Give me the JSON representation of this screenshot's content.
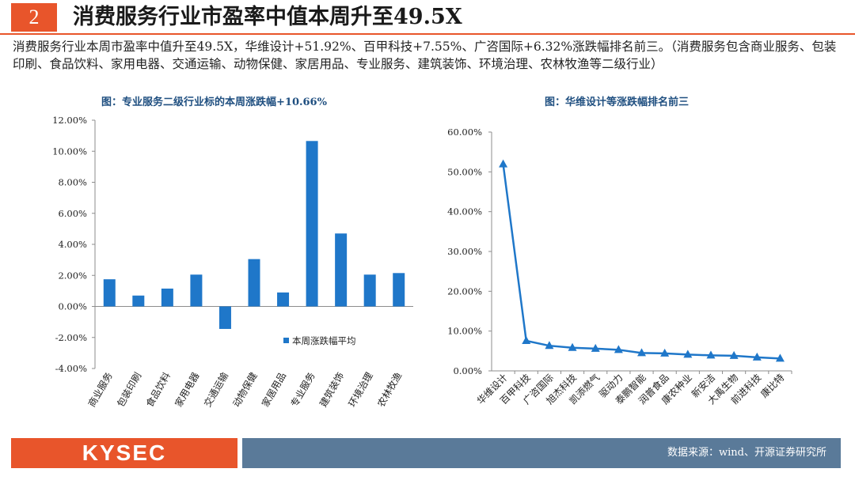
{
  "header": {
    "number": "2",
    "title": "消费服务行业市盈率中值本周升至49.5X"
  },
  "description": "消费服务行业本周市盈率中值升至49.5X，华维设计+51.92%、百甲科技+7.55%、广咨国际+6.32%涨跌幅排名前三。（消费服务包含商业服务、包装印刷、食品饮料、家用电器、交通运输、动物保健、家居用品、专业服务、建筑装饰、环境治理、农林牧渔等二级行业）",
  "footer": {
    "logo": "KYSEC",
    "source": "数据来源：wind、开源证券研究所"
  },
  "colors": {
    "accent": "#e8552b",
    "bar": "#1f77c9",
    "line": "#1f77c9",
    "footer_bg": "#5a7a99"
  },
  "chart_data": [
    {
      "type": "bar",
      "title": "图：专业服务二级行业标的本周涨跌幅+10.66%",
      "categories": [
        "商业服务",
        "包装印刷",
        "食品饮料",
        "家用电器",
        "交通运输",
        "动物保健",
        "家居用品",
        "专业服务",
        "建筑装饰",
        "环境治理",
        "农林牧渔"
      ],
      "series": [
        {
          "name": "本周涨跌幅平均",
          "values": [
            1.75,
            0.7,
            1.15,
            2.05,
            -1.45,
            3.05,
            0.9,
            10.66,
            4.7,
            2.05,
            2.15
          ]
        }
      ],
      "yticks": [
        "12.00%",
        "10.00%",
        "8.00%",
        "6.00%",
        "4.00%",
        "2.00%",
        "0.00%",
        "-2.00%",
        "-4.00%"
      ],
      "ylim": [
        -4,
        12
      ],
      "legend_position": "right"
    },
    {
      "type": "line",
      "title": "图：华维设计等涨跌幅排名前三",
      "categories": [
        "华维设计",
        "百甲科技",
        "广咨国际",
        "旭杰科技",
        "凯添燃气",
        "驱动力",
        "泰鹏智能",
        "润普食品",
        "康农种业",
        "新安洁",
        "大禹生物",
        "前进科技",
        "康比特"
      ],
      "series": [
        {
          "values": [
            51.92,
            7.55,
            6.32,
            5.8,
            5.6,
            5.3,
            4.5,
            4.4,
            4.1,
            3.9,
            3.8,
            3.4,
            3.1
          ]
        }
      ],
      "yticks": [
        "60.00%",
        "50.00%",
        "40.00%",
        "30.00%",
        "20.00%",
        "10.00%",
        "0.00%"
      ],
      "ylim": [
        0,
        60
      ]
    }
  ]
}
